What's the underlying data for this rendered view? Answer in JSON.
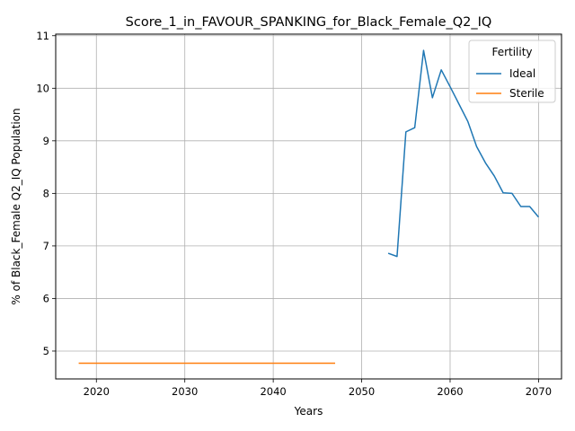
{
  "chart_data": {
    "type": "line",
    "title": "Score_1_in_FAVOUR_SPANKING_for_Black_Female_Q2_IQ",
    "xlabel": "Years",
    "ylabel": "% of Black_Female Q2_IQ Population",
    "xlim": [
      2015.4,
      2072.6
    ],
    "ylim": [
      4.47,
      11.03
    ],
    "xticks": [
      2020,
      2030,
      2040,
      2050,
      2060,
      2070
    ],
    "yticks": [
      5,
      6,
      7,
      8,
      9,
      10,
      11
    ],
    "grid": true,
    "legend": {
      "title": "Fertility",
      "position": "top-right"
    },
    "series": [
      {
        "name": "Ideal",
        "color": "#1f77b4",
        "x": [
          2053,
          2054,
          2055,
          2056,
          2057,
          2058,
          2059,
          2060,
          2061,
          2062,
          2063,
          2064,
          2065,
          2066,
          2067,
          2068,
          2069,
          2070
        ],
        "y": [
          6.86,
          6.8,
          9.17,
          9.25,
          10.72,
          9.82,
          10.35,
          10.03,
          9.7,
          9.37,
          8.89,
          8.58,
          8.33,
          8.01,
          8.0,
          7.75,
          7.75,
          7.55
        ]
      },
      {
        "name": "Sterile",
        "color": "#ff7f0e",
        "x": [
          2018,
          2019,
          2020,
          2021,
          2022,
          2023,
          2024,
          2025,
          2026,
          2027,
          2028,
          2029,
          2030,
          2031,
          2032,
          2033,
          2034,
          2035,
          2036,
          2037,
          2038,
          2039,
          2040,
          2041,
          2042,
          2043,
          2044,
          2045,
          2046,
          2047
        ],
        "y": [
          4.77,
          4.77,
          4.77,
          4.77,
          4.77,
          4.77,
          4.77,
          4.77,
          4.77,
          4.77,
          4.77,
          4.77,
          4.77,
          4.77,
          4.77,
          4.77,
          4.77,
          4.77,
          4.77,
          4.77,
          4.77,
          4.77,
          4.77,
          4.77,
          4.77,
          4.77,
          4.77,
          4.77,
          4.77,
          4.77
        ]
      }
    ]
  }
}
